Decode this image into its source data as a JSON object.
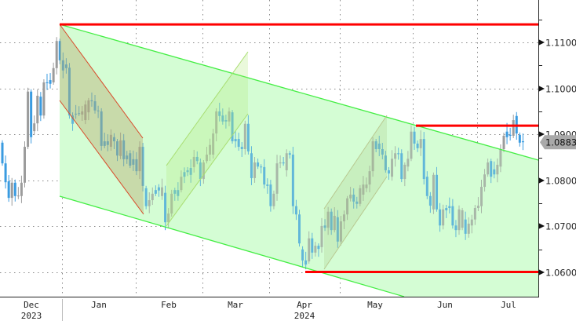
{
  "chart_data": {
    "type": "candlestick",
    "title": "",
    "colors": {
      "up": "#9c9c9c",
      "down": "#3a9be0",
      "level": "#ff0000",
      "channel": "#44ee44",
      "channel_fill": "#d8fcd8",
      "down_channel": "#d94a2a",
      "down_channel_fill": "#b8a070",
      "up_channel": "#a8dd70"
    },
    "y_axis": {
      "position": "right",
      "ticks": [
        "1.0600",
        "1.0700",
        "1.0800",
        "1.0900",
        "1.1000",
        "1.1100"
      ],
      "range": [
        1.0555,
        1.1192
      ],
      "grid": true
    },
    "x_axis": {
      "months": [
        "Dec",
        "Jan",
        "Feb",
        "Mar",
        "Apr",
        "May",
        "Jun",
        "Jul"
      ],
      "years": [
        "2023",
        "2024"
      ],
      "grid": true
    },
    "last_price": "1.0883",
    "horizontal_levels": [
      1.1139,
      1.0919,
      1.0601
    ],
    "candles_open_close": [
      [
        1.0882,
        1.0837
      ],
      [
        1.0837,
        1.0796
      ],
      [
        1.0798,
        1.0762
      ],
      [
        1.0762,
        1.0795
      ],
      [
        1.0795,
        1.0766
      ],
      [
        1.0766,
        1.0767
      ],
      [
        1.0766,
        1.0795
      ],
      [
        1.0795,
        1.0873
      ],
      [
        1.0873,
        1.0993
      ],
      [
        1.0993,
        1.0894
      ],
      [
        1.0907,
        1.0924
      ],
      [
        1.0924,
        1.0984
      ],
      [
        1.0982,
        1.0941
      ],
      [
        1.0941,
        1.1013
      ],
      [
        1.1013,
        1.1012
      ],
      [
        1.1018,
        1.101
      ],
      [
        1.1013,
        1.1044
      ],
      [
        1.1044,
        1.1103
      ],
      [
        1.1103,
        1.1061
      ],
      [
        1.1061,
        1.1039
      ],
      [
        1.1052,
        1.1044
      ],
      [
        1.1045,
        1.0941
      ],
      [
        1.0941,
        1.0923
      ],
      [
        1.0945,
        1.0944
      ],
      [
        1.0946,
        1.0945
      ],
      [
        1.0943,
        1.095
      ],
      [
        1.0931,
        1.0965
      ],
      [
        1.0948,
        1.0974
      ],
      [
        1.0974,
        1.0972
      ],
      [
        1.0972,
        1.0952
      ],
      [
        1.0952,
        1.0951
      ],
      [
        1.095,
        1.0875
      ],
      [
        1.0885,
        1.0875
      ],
      [
        1.0885,
        1.0877
      ],
      [
        1.0873,
        1.0899
      ],
      [
        1.0894,
        1.0885
      ],
      [
        1.0885,
        1.0854
      ],
      [
        1.0853,
        1.0887
      ],
      [
        1.0887,
        1.0846
      ],
      [
        1.0854,
        1.0846
      ],
      [
        1.0859,
        1.0832
      ],
      [
        1.0846,
        1.0834
      ],
      [
        1.0846,
        1.082
      ],
      [
        1.082,
        1.0873
      ],
      [
        1.0873,
        1.0788
      ],
      [
        1.0783,
        1.0744
      ],
      [
        1.0744,
        1.0757
      ],
      [
        1.0757,
        1.0771
      ],
      [
        1.0779,
        1.0771
      ],
      [
        1.0785,
        1.0778
      ],
      [
        1.0766,
        1.0785
      ],
      [
        1.0773,
        1.0709
      ],
      [
        1.0709,
        1.0728
      ],
      [
        1.0728,
        1.0771
      ],
      [
        1.0779,
        1.0771
      ],
      [
        1.0779,
        1.0766
      ],
      [
        1.0779,
        1.0808
      ],
      [
        1.0818,
        1.0808
      ],
      [
        1.0822,
        1.0818
      ],
      [
        1.0827,
        1.0812
      ],
      [
        1.0829,
        1.0851
      ],
      [
        1.0851,
        1.0842
      ],
      [
        1.0839,
        1.0803
      ],
      [
        1.0803,
        1.0839
      ],
      [
        1.0842,
        1.0856
      ],
      [
        1.0856,
        1.0877
      ],
      [
        1.0856,
        1.0902
      ],
      [
        1.0902,
        1.095
      ],
      [
        1.095,
        1.094
      ],
      [
        1.0941,
        1.0928
      ],
      [
        1.0931,
        1.0928
      ],
      [
        1.0928,
        1.095
      ],
      [
        1.0948,
        1.0885
      ],
      [
        1.089,
        1.0885
      ],
      [
        1.089,
        1.0873
      ],
      [
        1.0873,
        1.0868
      ],
      [
        1.0868,
        1.0923
      ],
      [
        1.0923,
        1.0863
      ],
      [
        1.0859,
        1.0805
      ],
      [
        1.0805,
        1.0839
      ],
      [
        1.0839,
        1.083
      ],
      [
        1.083,
        1.0829
      ],
      [
        1.0829,
        1.0791
      ],
      [
        1.0791,
        1.0788
      ],
      [
        1.0791,
        1.0744
      ],
      [
        1.0744,
        1.0771
      ],
      [
        1.0771,
        1.0837
      ],
      [
        1.0837,
        1.0839
      ],
      [
        1.0839,
        1.0837
      ],
      [
        1.0822,
        1.0859
      ],
      [
        1.0859,
        1.0856
      ],
      [
        1.0856,
        1.0744
      ],
      [
        1.0744,
        1.0726
      ],
      [
        1.0726,
        1.0663
      ],
      [
        1.065,
        1.0626
      ],
      [
        1.0626,
        1.0617
      ],
      [
        1.0624,
        1.0674
      ],
      [
        1.0674,
        1.0643
      ],
      [
        1.0643,
        1.0658
      ],
      [
        1.0658,
        1.0651
      ],
      [
        1.0655,
        1.0701
      ],
      [
        1.0702,
        1.0697
      ],
      [
        1.0697,
        1.0732
      ],
      [
        1.0732,
        1.0692
      ],
      [
        1.0692,
        1.0723
      ],
      [
        1.072,
        1.0667
      ],
      [
        1.0667,
        1.0711
      ],
      [
        1.0711,
        1.0726
      ],
      [
        1.0726,
        1.0761
      ],
      [
        1.0761,
        1.0769
      ],
      [
        1.0769,
        1.0754
      ],
      [
        1.0754,
        1.0749
      ],
      [
        1.0749,
        1.0783
      ],
      [
        1.0769,
        1.0791
      ],
      [
        1.0783,
        1.0791
      ],
      [
        1.0791,
        1.082
      ],
      [
        1.082,
        1.0885
      ],
      [
        1.0885,
        1.0868
      ],
      [
        1.088,
        1.0868
      ],
      [
        1.0868,
        1.0856
      ],
      [
        1.0854,
        1.0822
      ],
      [
        1.0822,
        1.0815
      ],
      [
        1.0808,
        1.0847
      ],
      [
        1.0847,
        1.0859
      ],
      [
        1.0859,
        1.0857
      ],
      [
        1.0859,
        1.0803
      ],
      [
        1.0803,
        1.0834
      ],
      [
        1.083,
        1.0847
      ],
      [
        1.0847,
        1.0906
      ],
      [
        1.0906,
        1.088
      ],
      [
        1.088,
        1.087
      ],
      [
        1.087,
        1.089
      ],
      [
        1.089,
        1.0803
      ],
      [
        1.0808,
        1.0766
      ],
      [
        1.0766,
        1.0745
      ],
      [
        1.0737,
        1.0812
      ],
      [
        1.0812,
        1.0737
      ],
      [
        1.0737,
        1.0702
      ],
      [
        1.0702,
        1.0737
      ],
      [
        1.074,
        1.0735
      ],
      [
        1.0744,
        1.074
      ],
      [
        1.0744,
        1.0702
      ],
      [
        1.0702,
        1.0692
      ],
      [
        1.0692,
        1.0737
      ],
      [
        1.0697,
        1.0735
      ],
      [
        1.0715,
        1.0684
      ],
      [
        1.0684,
        1.0706
      ],
      [
        1.0702,
        1.0715
      ],
      [
        1.0715,
        1.074
      ],
      [
        1.074,
        1.0745
      ],
      [
        1.0744,
        1.0786
      ],
      [
        1.0786,
        1.0813
      ],
      [
        1.0813,
        1.0839
      ],
      [
        1.0842,
        1.0808
      ],
      [
        1.0824,
        1.0813
      ],
      [
        1.0813,
        1.0834
      ],
      [
        1.083,
        1.0868
      ],
      [
        1.0868,
        1.0897
      ],
      [
        1.0906,
        1.0894
      ],
      [
        1.0899,
        1.0897
      ],
      [
        1.0897,
        1.0931
      ],
      [
        1.094,
        1.0902
      ],
      [
        1.0899,
        1.0882
      ],
      [
        1.0885,
        1.0883
      ]
    ]
  }
}
